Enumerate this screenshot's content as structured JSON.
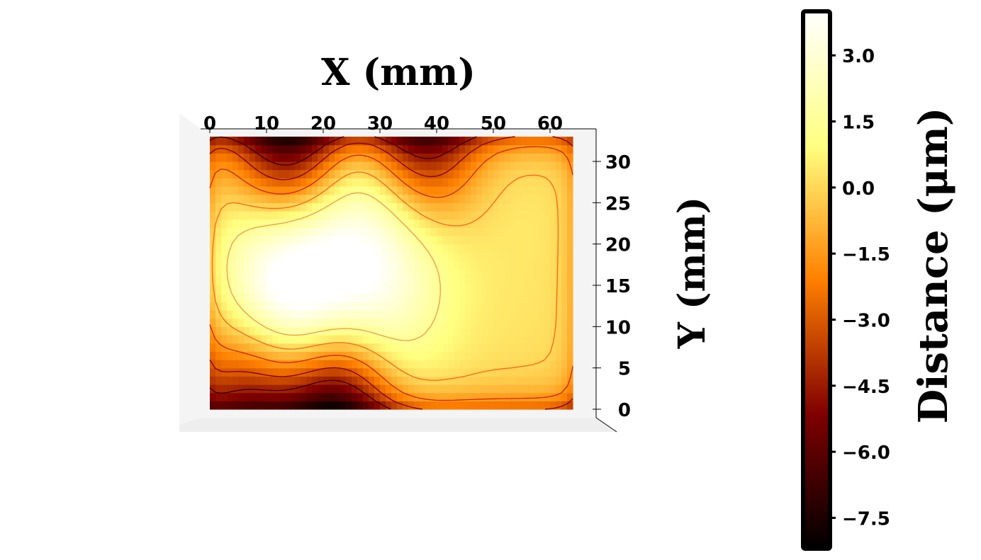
{
  "chart_data": {
    "type": "heatmap",
    "view": "3d-surface-top-down",
    "xlabel": "X (mm)",
    "ylabel": "Y (mm)",
    "colorbar_label": "Distance (μm)",
    "colormap": "afmhot",
    "xlim": [
      0,
      64
    ],
    "ylim": [
      0,
      33
    ],
    "clim": [
      -8.2,
      4.0
    ],
    "x_ticks": [
      "0",
      "10",
      "20",
      "30",
      "40",
      "50",
      "60"
    ],
    "y_ticks": [
      "0",
      "5",
      "10",
      "15",
      "20",
      "25",
      "30"
    ],
    "colorbar_ticks": [
      "3.0",
      "1.5",
      "0.0",
      "−1.5",
      "−3.0",
      "−4.5",
      "−6.0",
      "−7.5"
    ],
    "contour_levels": [
      -4.5,
      -3.0,
      -1.5,
      0.0,
      1.5
    ],
    "grid": false,
    "features": [
      {
        "x": 14,
        "y": 18,
        "value": 3.0
      },
      {
        "x": 31,
        "y": 26,
        "value": 2.8
      },
      {
        "x": 29,
        "y": 13,
        "value": 2.6
      },
      {
        "x": 14,
        "y": 10,
        "value": 3.2
      },
      {
        "x": 14,
        "y": 32,
        "value": -5.8
      },
      {
        "x": 37,
        "y": 32,
        "value": -5.5
      },
      {
        "x": 22,
        "y": 1,
        "value": -6.5
      },
      {
        "x": 7,
        "y": 2,
        "value": -4.5
      },
      {
        "x": 54,
        "y": 29,
        "value": 0.5
      }
    ]
  }
}
